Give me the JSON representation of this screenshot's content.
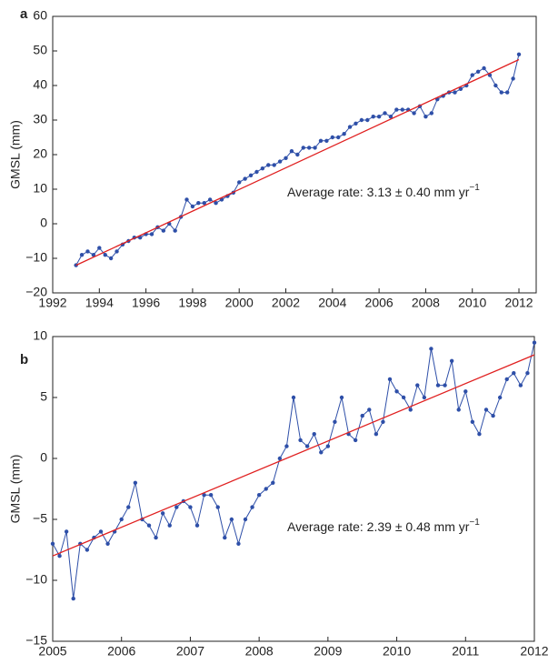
{
  "chart_data": [
    {
      "type": "line",
      "panel_label": "a",
      "ylabel": "GMSL (mm)",
      "annotation": "Average rate: 3.13 ±  0.40 mm yr",
      "annotation_sup": "−1",
      "xlim": [
        1992,
        2012.74
      ],
      "ylim": [
        -20,
        60
      ],
      "xticks": [
        1992,
        1994,
        1996,
        1998,
        2000,
        2002,
        2004,
        2006,
        2008,
        2010,
        2012
      ],
      "yticks": [
        {
          "value": -20,
          "label": "−20"
        },
        {
          "value": -10,
          "label": "−10"
        },
        0,
        10,
        20,
        30,
        40,
        50,
        60
      ],
      "series": [
        {
          "color": "#2e4fa8",
          "x": [
            1993.0,
            1993.25,
            1993.5,
            1993.75,
            1994.0,
            1994.25,
            1994.5,
            1994.75,
            1995.0,
            1995.25,
            1995.5,
            1995.75,
            1996.0,
            1996.25,
            1996.5,
            1996.75,
            1997.0,
            1997.25,
            1997.5,
            1997.75,
            1998.0,
            1998.25,
            1998.5,
            1998.75,
            1999.0,
            1999.25,
            1999.5,
            1999.75,
            2000.0,
            2000.25,
            2000.5,
            2000.75,
            2001.0,
            2001.25,
            2001.5,
            2001.75,
            2002.0,
            2002.25,
            2002.5,
            2002.75,
            2003.0,
            2003.25,
            2003.5,
            2003.75,
            2004.0,
            2004.25,
            2004.5,
            2004.75,
            2005.0,
            2005.25,
            2005.5,
            2005.75,
            2006.0,
            2006.25,
            2006.5,
            2006.75,
            2007.0,
            2007.25,
            2007.5,
            2007.75,
            2008.0,
            2008.25,
            2008.5,
            2008.75,
            2009.0,
            2009.25,
            2009.5,
            2009.75,
            2010.0,
            2010.25,
            2010.5,
            2010.75,
            2011.0,
            2011.25,
            2011.5,
            2011.75,
            2012.0
          ],
          "values": [
            -12,
            -9,
            -8,
            -9,
            -7,
            -9,
            -10,
            -8,
            -6,
            -5,
            -4,
            -4,
            -3,
            -3,
            -1,
            -2,
            0,
            -2,
            2,
            7,
            5,
            6,
            6,
            7,
            6,
            7,
            8,
            9,
            12,
            13,
            14,
            15,
            16,
            17,
            17,
            18,
            19,
            21,
            20,
            22,
            22,
            22,
            24,
            24,
            25,
            25,
            26,
            28,
            29,
            30,
            30,
            31,
            31,
            32,
            31,
            33,
            33,
            33,
            32,
            34,
            31,
            32,
            36,
            37,
            38,
            38,
            39,
            40,
            43,
            44,
            45,
            43,
            40,
            38,
            38,
            42,
            49
          ]
        },
        {
          "color": "#e02020",
          "x": [
            1993,
            2012
          ],
          "values": [
            -12,
            47.5
          ]
        }
      ]
    },
    {
      "type": "line",
      "panel_label": "b",
      "ylabel": "GMSL (mm)",
      "annotation": "Average rate: 2.39 ±  0.48 mm yr",
      "annotation_sup": "−1",
      "xlim": [
        2005,
        2012
      ],
      "ylim": [
        -15,
        10
      ],
      "xticks": [
        2005,
        2006,
        2007,
        2008,
        2009,
        2010,
        2011,
        2012
      ],
      "yticks": [
        {
          "value": -15,
          "label": "−15"
        },
        {
          "value": -10,
          "label": "−10"
        },
        {
          "value": -5,
          "label": "−5"
        },
        0,
        5,
        10
      ],
      "series": [
        {
          "color": "#2e4fa8",
          "x": [
            2005.0,
            2005.1,
            2005.2,
            2005.3,
            2005.4,
            2005.5,
            2005.6,
            2005.7,
            2005.8,
            2005.9,
            2006.0,
            2006.1,
            2006.2,
            2006.3,
            2006.4,
            2006.5,
            2006.6,
            2006.7,
            2006.8,
            2006.9,
            2007.0,
            2007.1,
            2007.2,
            2007.3,
            2007.4,
            2007.5,
            2007.6,
            2007.7,
            2007.8,
            2007.9,
            2008.0,
            2008.1,
            2008.2,
            2008.3,
            2008.4,
            2008.5,
            2008.6,
            2008.7,
            2008.8,
            2008.9,
            2009.0,
            2009.1,
            2009.2,
            2009.3,
            2009.4,
            2009.5,
            2009.6,
            2009.7,
            2009.8,
            2009.9,
            2010.0,
            2010.1,
            2010.2,
            2010.3,
            2010.4,
            2010.5,
            2010.6,
            2010.7,
            2010.8,
            2010.9,
            2011.0,
            2011.1,
            2011.2,
            2011.3,
            2011.4,
            2011.5,
            2011.6,
            2011.7,
            2011.8,
            2011.9,
            2012.0
          ],
          "values": [
            -7,
            -8,
            -6,
            -11.5,
            -7,
            -7.5,
            -6.5,
            -6,
            -7,
            -6,
            -5,
            -4,
            -2,
            -5,
            -5.5,
            -6.5,
            -4.5,
            -5.5,
            -4,
            -3.5,
            -4,
            -5.5,
            -3,
            -3,
            -4,
            -6.5,
            -5,
            -7,
            -5,
            -4,
            -3,
            -2.5,
            -2,
            0,
            1,
            5,
            1.5,
            1,
            2,
            0.5,
            1,
            3,
            5,
            2,
            1.5,
            3.5,
            4,
            2,
            3,
            6.5,
            5.5,
            5,
            4,
            6,
            5,
            9,
            6,
            6,
            8,
            4,
            5.5,
            3,
            2,
            4,
            3.5,
            5,
            6.5,
            7,
            6,
            7,
            9.5
          ]
        },
        {
          "color": "#e02020",
          "x": [
            2005,
            2012
          ],
          "values": [
            -8,
            8.5
          ]
        }
      ]
    }
  ]
}
